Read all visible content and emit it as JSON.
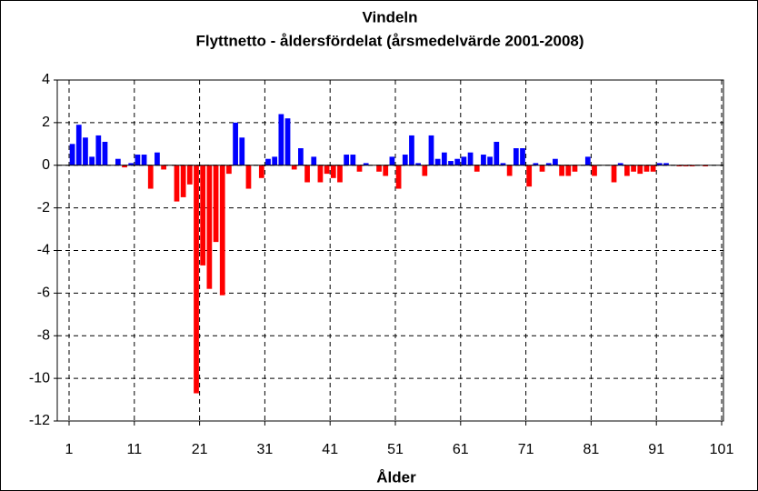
{
  "chart_data": {
    "type": "bar",
    "title": "Vindeln",
    "subtitle": "Flyttnetto - åldersfördelat (årsmedelvärde 2001-2008)",
    "x_label": "Ålder",
    "x": [
      1,
      2,
      3,
      4,
      5,
      6,
      7,
      8,
      9,
      10,
      11,
      12,
      13,
      14,
      15,
      16,
      17,
      18,
      19,
      20,
      21,
      22,
      23,
      24,
      25,
      26,
      27,
      28,
      29,
      30,
      31,
      32,
      33,
      34,
      35,
      36,
      37,
      38,
      39,
      40,
      41,
      42,
      43,
      44,
      45,
      46,
      47,
      48,
      49,
      50,
      51,
      52,
      53,
      54,
      55,
      56,
      57,
      58,
      59,
      60,
      61,
      62,
      63,
      64,
      65,
      66,
      67,
      68,
      69,
      70,
      71,
      72,
      73,
      74,
      75,
      76,
      77,
      78,
      79,
      80,
      81,
      82,
      83,
      84,
      85,
      86,
      87,
      88,
      89,
      90,
      91,
      92,
      93,
      94,
      95,
      96,
      97,
      98,
      99,
      100
    ],
    "values": [
      1.0,
      1.9,
      1.3,
      0.4,
      1.4,
      1.1,
      0,
      0.3,
      -0.1,
      0.1,
      0.5,
      0.5,
      -1.1,
      0.6,
      -0.2,
      0,
      -1.7,
      -1.5,
      -0.9,
      -10.7,
      -4.7,
      -5.8,
      -3.6,
      -6.1,
      -0.4,
      2.0,
      1.3,
      -1.1,
      0,
      -0.6,
      0.3,
      0.4,
      2.4,
      2.2,
      -0.2,
      0.8,
      -0.8,
      0.4,
      -0.8,
      -0.4,
      -0.6,
      -0.8,
      0.5,
      0.5,
      -0.3,
      0.1,
      0,
      -0.3,
      -0.5,
      0.4,
      -1.1,
      0.5,
      1.4,
      0.1,
      -0.5,
      1.4,
      0.3,
      0.6,
      0.2,
      0.3,
      0.4,
      0.6,
      -0.3,
      0.5,
      0.4,
      1.1,
      0.1,
      -0.5,
      0.8,
      0.8,
      -1.0,
      0.1,
      -0.3,
      0.1,
      0.3,
      -0.5,
      -0.5,
      -0.3,
      0,
      0.4,
      -0.5,
      0,
      0,
      -0.8,
      0.1,
      -0.5,
      -0.3,
      -0.4,
      -0.3,
      -0.3,
      0.1,
      0.1,
      0,
      -0.05,
      -0.05,
      -0.05,
      0,
      -0.05,
      0,
      0
    ],
    "positive_color": "#0000ff",
    "negative_color": "#ff0000",
    "xlim": [
      1,
      101
    ],
    "xticks": [
      1,
      11,
      21,
      31,
      41,
      51,
      61,
      71,
      81,
      91,
      101
    ],
    "ylim": [
      -12,
      4
    ],
    "yticks": [
      -12,
      -10,
      -8,
      -6,
      -4,
      -2,
      0,
      2,
      4
    ],
    "grid": true
  }
}
